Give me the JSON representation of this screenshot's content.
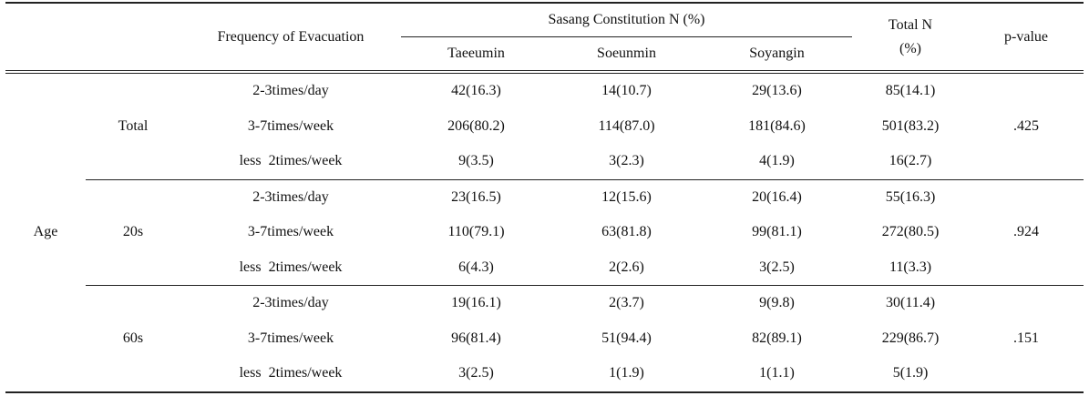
{
  "header": {
    "frequency": "Frequency of Evacuation",
    "sasang": "Sasang Constitution N (%)",
    "total_n": "Total N",
    "total_pct": "(%)",
    "pvalue": "p-value",
    "sub": [
      "Taeeumin",
      "Soeunmin",
      "Soyangin"
    ]
  },
  "row_label": "Age",
  "groups": [
    {
      "label": "Total",
      "pvalue": ".425",
      "rows": [
        {
          "freq": "2-3times/day",
          "taeeumin": "42(16.3)",
          "soeunmin": "14(10.7)",
          "soyangin": "29(13.6)",
          "total": "85(14.1)"
        },
        {
          "freq": "3-7times/week",
          "taeeumin": "206(80.2)",
          "soeunmin": "114(87.0)",
          "soyangin": "181(84.6)",
          "total": "501(83.2)"
        },
        {
          "freq": "less  2times/week",
          "taeeumin": "9(3.5)",
          "soeunmin": "3(2.3)",
          "soyangin": "4(1.9)",
          "total": "16(2.7)"
        }
      ]
    },
    {
      "label": "20s",
      "pvalue": ".924",
      "rows": [
        {
          "freq": "2-3times/day",
          "taeeumin": "23(16.5)",
          "soeunmin": "12(15.6)",
          "soyangin": "20(16.4)",
          "total": "55(16.3)"
        },
        {
          "freq": "3-7times/week",
          "taeeumin": "110(79.1)",
          "soeunmin": "63(81.8)",
          "soyangin": "99(81.1)",
          "total": "272(80.5)"
        },
        {
          "freq": "less  2times/week",
          "taeeumin": "6(4.3)",
          "soeunmin": "2(2.6)",
          "soyangin": "3(2.5)",
          "total": "11(3.3)"
        }
      ]
    },
    {
      "label": "60s",
      "pvalue": ".151",
      "rows": [
        {
          "freq": "2-3times/day",
          "taeeumin": "19(16.1)",
          "soeunmin": "2(3.7)",
          "soyangin": "9(9.8)",
          "total": "30(11.4)"
        },
        {
          "freq": "3-7times/week",
          "taeeumin": "96(81.4)",
          "soeunmin": "51(94.4)",
          "soyangin": "82(89.1)",
          "total": "229(86.7)"
        },
        {
          "freq": "less  2times/week",
          "taeeumin": "3(2.5)",
          "soeunmin": "1(1.9)",
          "soyangin": "1(1.1)",
          "total": "5(1.9)"
        }
      ]
    }
  ]
}
